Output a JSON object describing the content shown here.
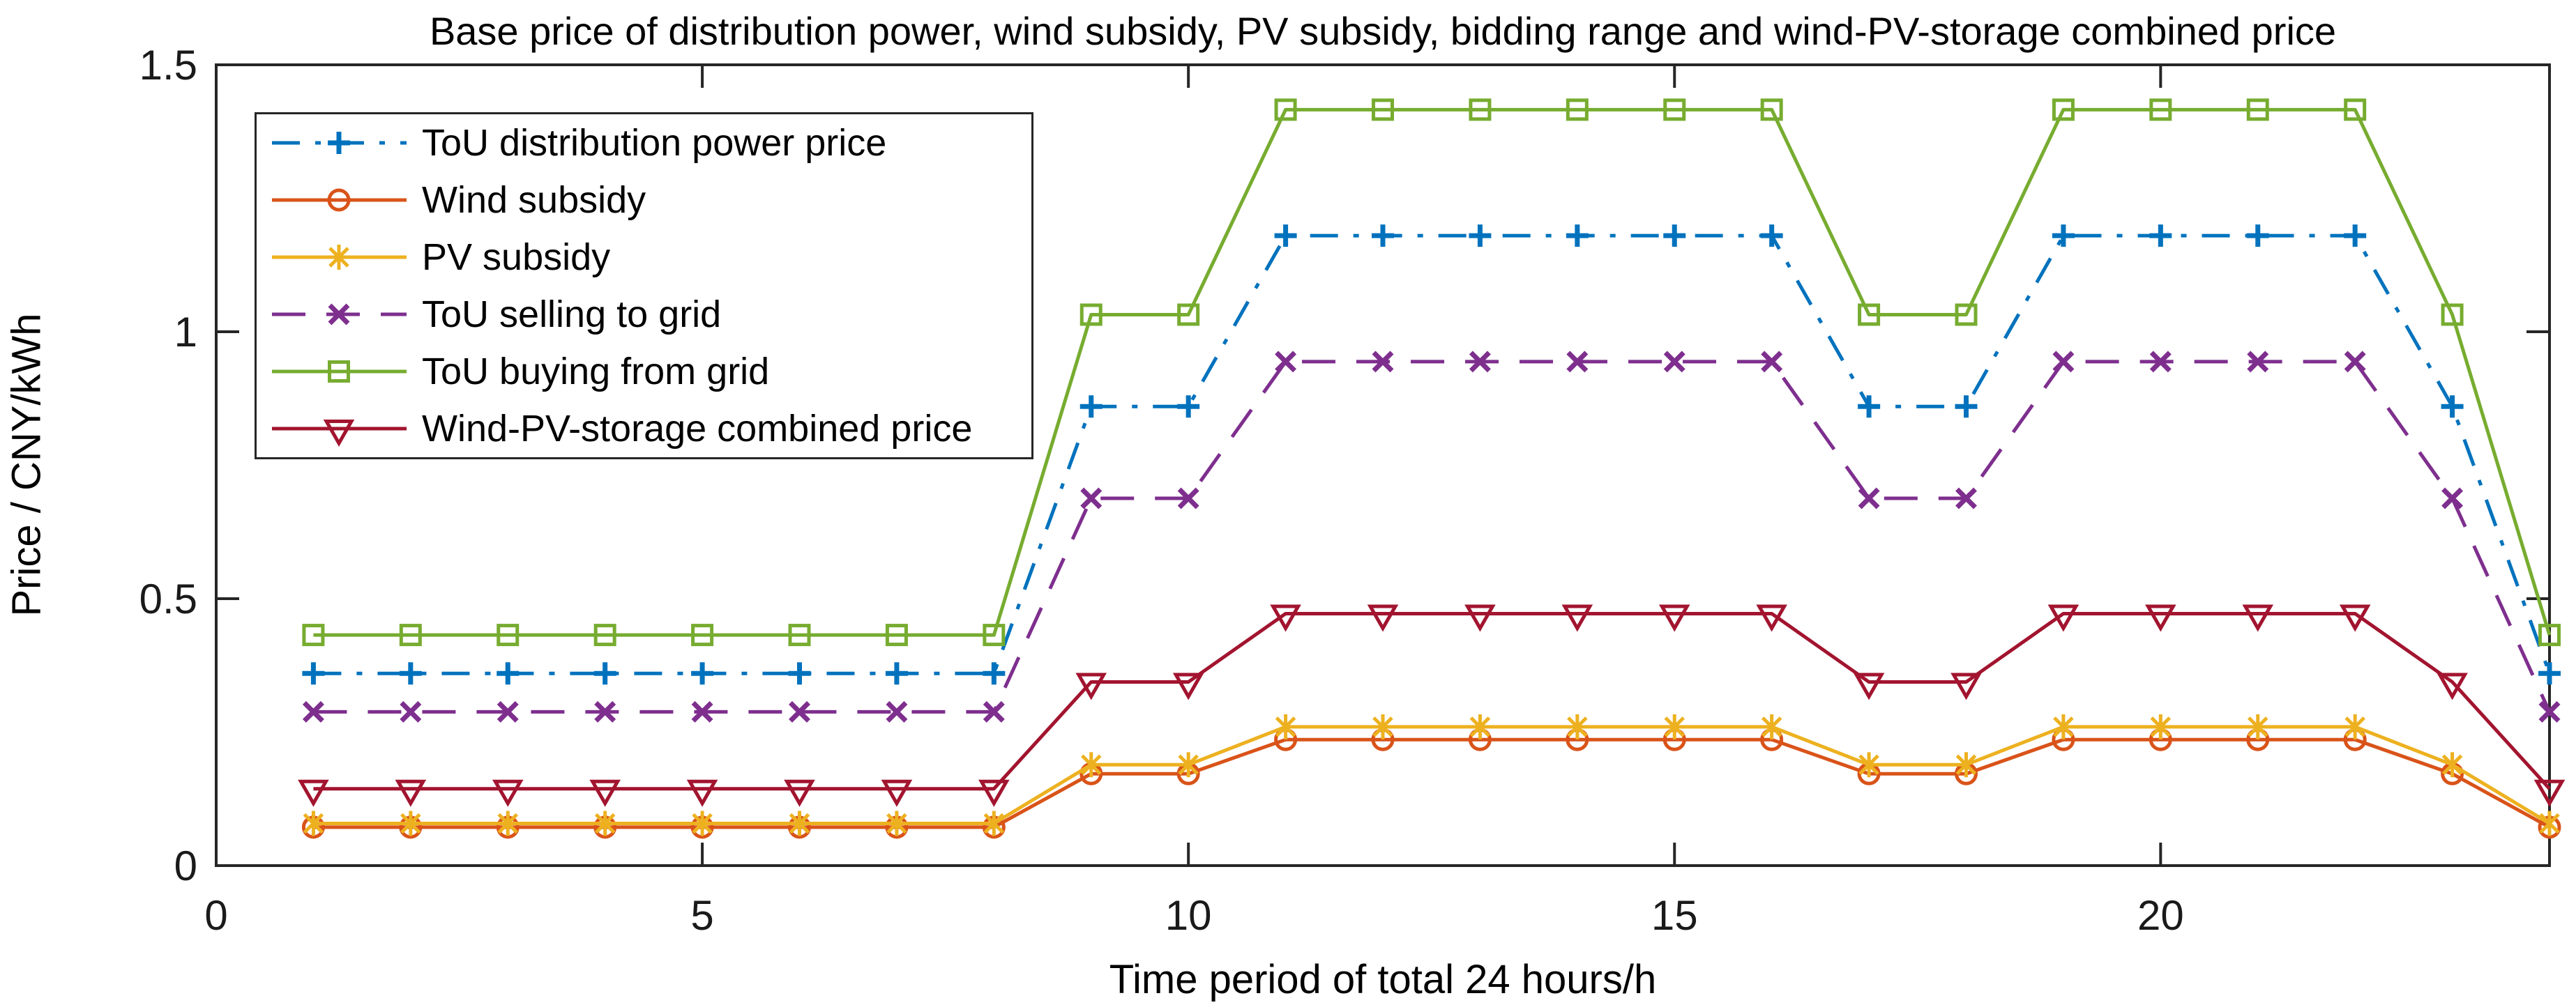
{
  "figure": {
    "background": "#ffffff",
    "axes_color": "#262626",
    "text_color": "#000000"
  },
  "chart_data": {
    "type": "line",
    "title": "Base price of distribution power, wind subsidy, PV subsidy, bidding range and wind-PV-storage combined price",
    "xlabel": "Time period of total 24 hours/h",
    "ylabel": "Price / CNY/kWh",
    "xlim": [
      0,
      24
    ],
    "ylim": [
      0,
      1.5
    ],
    "xticks": [
      0,
      5,
      10,
      15,
      20
    ],
    "xtick_labels": [
      "0",
      "5",
      "10",
      "15",
      "20"
    ],
    "yticks": [
      0,
      0.5,
      1,
      1.5
    ],
    "ytick_labels": [
      "0",
      "0.5",
      "1",
      "1.5"
    ],
    "grid": false,
    "legend_position": "top-left-inside",
    "x": [
      1,
      2,
      3,
      4,
      5,
      6,
      7,
      8,
      9,
      10,
      11,
      12,
      13,
      14,
      15,
      16,
      17,
      18,
      19,
      20,
      21,
      22,
      23,
      24
    ],
    "series": [
      {
        "name": "ToU distribution power price",
        "color": "#0072BD",
        "line_style": "dash-dot",
        "marker": "plus",
        "values": [
          0.36,
          0.36,
          0.36,
          0.36,
          0.36,
          0.36,
          0.36,
          0.36,
          0.86,
          0.86,
          1.18,
          1.18,
          1.18,
          1.18,
          1.18,
          1.18,
          0.86,
          0.86,
          1.18,
          1.18,
          1.18,
          1.18,
          0.86,
          0.36
        ]
      },
      {
        "name": "Wind subsidy",
        "color": "#D95319",
        "line_style": "solid",
        "marker": "circle",
        "values": [
          0.072,
          0.072,
          0.072,
          0.072,
          0.072,
          0.072,
          0.072,
          0.072,
          0.172,
          0.172,
          0.236,
          0.236,
          0.236,
          0.236,
          0.236,
          0.236,
          0.172,
          0.172,
          0.236,
          0.236,
          0.236,
          0.236,
          0.172,
          0.072
        ]
      },
      {
        "name": "PV subsidy",
        "color": "#EDB120",
        "line_style": "solid",
        "marker": "asterisk",
        "values": [
          0.079,
          0.079,
          0.079,
          0.079,
          0.079,
          0.079,
          0.079,
          0.079,
          0.189,
          0.189,
          0.26,
          0.26,
          0.26,
          0.26,
          0.26,
          0.26,
          0.189,
          0.189,
          0.26,
          0.26,
          0.26,
          0.26,
          0.189,
          0.079
        ]
      },
      {
        "name": "ToU selling to grid",
        "color": "#7E2F8E",
        "line_style": "dashed",
        "marker": "x",
        "values": [
          0.288,
          0.288,
          0.288,
          0.288,
          0.288,
          0.288,
          0.288,
          0.288,
          0.688,
          0.688,
          0.944,
          0.944,
          0.944,
          0.944,
          0.944,
          0.944,
          0.688,
          0.688,
          0.944,
          0.944,
          0.944,
          0.944,
          0.688,
          0.288
        ]
      },
      {
        "name": "ToU buying from grid",
        "color": "#77AC30",
        "line_style": "solid",
        "marker": "square",
        "values": [
          0.432,
          0.432,
          0.432,
          0.432,
          0.432,
          0.432,
          0.432,
          0.432,
          1.032,
          1.032,
          1.416,
          1.416,
          1.416,
          1.416,
          1.416,
          1.416,
          1.032,
          1.032,
          1.416,
          1.416,
          1.416,
          1.416,
          1.032,
          0.432
        ]
      },
      {
        "name": "Wind-PV-storage combined price",
        "color": "#A2142F",
        "line_style": "solid",
        "marker": "triangle-down",
        "values": [
          0.144,
          0.144,
          0.144,
          0.144,
          0.144,
          0.144,
          0.144,
          0.144,
          0.344,
          0.344,
          0.472,
          0.472,
          0.472,
          0.472,
          0.472,
          0.472,
          0.344,
          0.344,
          0.472,
          0.472,
          0.472,
          0.472,
          0.344,
          0.144
        ]
      }
    ]
  }
}
